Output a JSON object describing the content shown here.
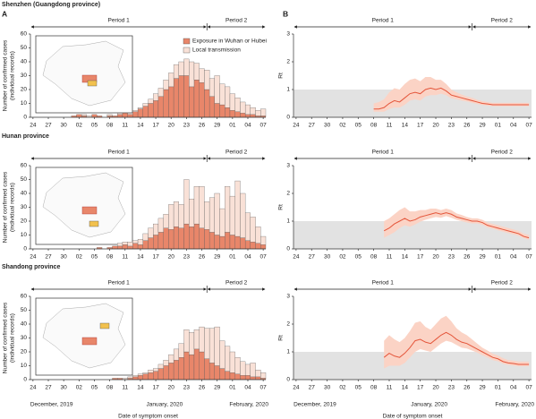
{
  "chart_data": [
    {
      "type": "stacked_bar",
      "title": "Shenzhen (Guangdong province)",
      "panel": "A",
      "categories": [
        "24",
        null,
        null,
        "27",
        null,
        null,
        "30",
        null,
        null,
        "02",
        null,
        null,
        "05",
        null,
        null,
        "08",
        null,
        null,
        "11",
        null,
        null,
        "14",
        null,
        null,
        "17",
        null,
        null,
        "20",
        null,
        null,
        "23",
        null,
        null,
        "26",
        null,
        null,
        "29",
        null,
        null,
        "01",
        null,
        null,
        "04",
        null,
        null,
        "07"
      ],
      "series": [
        {
          "name": "Exposure in Wuhan or Hubei",
          "color": "#e8866a",
          "values": [
            0,
            0,
            0,
            0,
            0,
            0,
            0,
            0,
            1,
            2,
            1,
            0,
            2,
            1,
            0,
            1,
            1,
            2,
            3,
            2,
            4,
            6,
            8,
            10,
            12,
            15,
            20,
            22,
            28,
            30,
            30,
            22,
            27,
            25,
            20,
            15,
            10,
            9,
            7,
            5,
            4,
            3,
            2,
            2,
            1,
            1
          ]
        },
        {
          "name": "Local transmission",
          "color": "#f9e1d7",
          "values": [
            0,
            0,
            0,
            0,
            0,
            0,
            0,
            0,
            0,
            0,
            1,
            1,
            0,
            0,
            0,
            1,
            0,
            1,
            0,
            1,
            1,
            1,
            2,
            3,
            5,
            6,
            7,
            10,
            10,
            10,
            12,
            18,
            12,
            10,
            14,
            13,
            20,
            15,
            15,
            12,
            10,
            8,
            7,
            5,
            4,
            5
          ]
        }
      ],
      "ylabel": [
        "Number of confirmed cases",
        "(individual records)"
      ],
      "ylim": [
        0,
        60
      ],
      "yticks": [
        0,
        10,
        20,
        30,
        40,
        50,
        60
      ],
      "periods": [
        "Period 1",
        "Period 2"
      ],
      "period_split": 34.5
    },
    {
      "type": "line",
      "panel": "B",
      "categories": [
        "24",
        null,
        null,
        "27",
        null,
        null,
        "30",
        null,
        null,
        "02",
        null,
        null,
        "05",
        null,
        null,
        "08",
        null,
        null,
        "11",
        null,
        null,
        "14",
        null,
        null,
        "17",
        null,
        null,
        "20",
        null,
        null,
        "23",
        null,
        null,
        "26",
        null,
        null,
        "29",
        null,
        null,
        "01",
        null,
        null,
        "04",
        null,
        null,
        "07"
      ],
      "values": [
        null,
        null,
        null,
        null,
        null,
        null,
        null,
        null,
        null,
        null,
        null,
        null,
        null,
        null,
        null,
        0.3,
        0.3,
        0.35,
        0.5,
        0.6,
        0.55,
        0.7,
        0.85,
        0.9,
        0.85,
        1.0,
        1.05,
        1.0,
        1.05,
        0.95,
        0.8,
        0.75,
        0.7,
        0.65,
        0.6,
        0.55,
        0.5,
        0.48,
        0.45,
        0.45,
        0.45,
        0.45,
        0.45,
        0.45,
        0.45,
        0.45
      ],
      "lower": [
        null,
        null,
        null,
        null,
        null,
        null,
        null,
        null,
        null,
        null,
        null,
        null,
        null,
        null,
        null,
        0.2,
        0.2,
        0.2,
        0.3,
        0.35,
        0.35,
        0.45,
        0.6,
        0.65,
        0.6,
        0.75,
        0.8,
        0.8,
        0.85,
        0.8,
        0.68,
        0.65,
        0.6,
        0.57,
        0.52,
        0.48,
        0.44,
        0.42,
        0.4,
        0.4,
        0.4,
        0.4,
        0.4,
        0.4,
        0.4,
        0.4
      ],
      "upper": [
        null,
        null,
        null,
        null,
        null,
        null,
        null,
        null,
        null,
        null,
        null,
        null,
        null,
        null,
        null,
        0.5,
        0.55,
        0.65,
        0.9,
        1.05,
        1.0,
        1.2,
        1.35,
        1.4,
        1.3,
        1.45,
        1.45,
        1.35,
        1.35,
        1.2,
        1.0,
        0.9,
        0.82,
        0.75,
        0.7,
        0.63,
        0.58,
        0.55,
        0.52,
        0.52,
        0.52,
        0.52,
        0.52,
        0.52,
        0.52,
        0.52
      ],
      "color": "#e4553a",
      "band_color": "#fbd3c5",
      "reference_band": [
        0,
        1
      ],
      "reference_color": "#e2e2e2",
      "ylabel": "Rt",
      "ylim": [
        0,
        3
      ],
      "yticks": [
        0,
        1,
        2,
        3
      ],
      "periods": [
        "Period 1",
        "Period 2"
      ],
      "period_split": 34.5
    },
    {
      "type": "stacked_bar",
      "title": "Hunan province",
      "categories": [
        "24",
        null,
        null,
        "27",
        null,
        null,
        "30",
        null,
        null,
        "02",
        null,
        null,
        "05",
        null,
        null,
        "08",
        null,
        null,
        "11",
        null,
        null,
        "14",
        null,
        null,
        "17",
        null,
        null,
        "20",
        null,
        null,
        "23",
        null,
        null,
        "26",
        null,
        null,
        "29",
        null,
        null,
        "01",
        null,
        null,
        "04",
        null,
        null,
        "07"
      ],
      "series": [
        {
          "color": "#e8866a",
          "values": [
            0,
            0,
            0,
            0,
            0,
            0,
            0,
            0,
            0,
            0,
            0,
            0,
            0,
            1,
            0,
            1,
            2,
            2,
            3,
            2,
            4,
            3,
            6,
            8,
            10,
            12,
            15,
            14,
            16,
            15,
            18,
            16,
            18,
            15,
            14,
            12,
            10,
            9,
            12,
            10,
            9,
            8,
            6,
            5,
            4,
            3
          ]
        },
        {
          "color": "#f9e1d7",
          "values": [
            0,
            0,
            0,
            0,
            0,
            0,
            0,
            0,
            0,
            0,
            0,
            0,
            0,
            0,
            0,
            0,
            0,
            2,
            2,
            3,
            2,
            4,
            5,
            7,
            8,
            10,
            10,
            18,
            18,
            17,
            32,
            20,
            27,
            30,
            20,
            25,
            30,
            20,
            33,
            28,
            40,
            32,
            20,
            18,
            12,
            6
          ]
        }
      ],
      "ylabel": [
        "Number of confirmed cases",
        "(individual records)"
      ],
      "ylim": [
        0,
        60
      ],
      "yticks": [
        0,
        10,
        20,
        30,
        40,
        50,
        60
      ],
      "periods": [
        "Period 1",
        "Period 2"
      ],
      "period_split": 34.5
    },
    {
      "type": "line",
      "categories": [
        "24",
        null,
        null,
        "27",
        null,
        null,
        "30",
        null,
        null,
        "02",
        null,
        null,
        "05",
        null,
        null,
        "08",
        null,
        null,
        "11",
        null,
        null,
        "14",
        null,
        null,
        "17",
        null,
        null,
        "20",
        null,
        null,
        "23",
        null,
        null,
        "26",
        null,
        null,
        "29",
        null,
        null,
        "01",
        null,
        null,
        "04",
        null,
        null,
        "07"
      ],
      "values": [
        null,
        null,
        null,
        null,
        null,
        null,
        null,
        null,
        null,
        null,
        null,
        null,
        null,
        null,
        null,
        null,
        null,
        0.65,
        0.75,
        0.9,
        1.0,
        1.1,
        1.0,
        1.05,
        1.15,
        1.2,
        1.25,
        1.3,
        1.25,
        1.3,
        1.25,
        1.15,
        1.1,
        1.05,
        1.0,
        1.0,
        0.95,
        0.85,
        0.8,
        0.75,
        0.7,
        0.65,
        0.6,
        0.55,
        0.45,
        0.4
      ],
      "lower": [
        null,
        null,
        null,
        null,
        null,
        null,
        null,
        null,
        null,
        null,
        null,
        null,
        null,
        null,
        null,
        null,
        null,
        0.4,
        0.5,
        0.6,
        0.75,
        0.85,
        0.8,
        0.88,
        0.98,
        1.05,
        1.1,
        1.15,
        1.12,
        1.18,
        1.12,
        1.05,
        1.0,
        0.95,
        0.92,
        0.92,
        0.87,
        0.77,
        0.72,
        0.67,
        0.62,
        0.57,
        0.52,
        0.47,
        0.38,
        0.33
      ],
      "upper": [
        null,
        null,
        null,
        null,
        null,
        null,
        null,
        null,
        null,
        null,
        null,
        null,
        null,
        null,
        null,
        null,
        null,
        1.0,
        1.1,
        1.25,
        1.4,
        1.5,
        1.35,
        1.35,
        1.4,
        1.4,
        1.45,
        1.45,
        1.4,
        1.45,
        1.4,
        1.28,
        1.22,
        1.15,
        1.1,
        1.1,
        1.05,
        0.95,
        0.9,
        0.85,
        0.8,
        0.75,
        0.7,
        0.65,
        0.55,
        0.5
      ],
      "color": "#e4553a",
      "band_color": "#fbd3c5",
      "reference_band": [
        0,
        1
      ],
      "reference_color": "#e2e2e2",
      "ylabel": "Rt",
      "ylim": [
        0,
        3
      ],
      "yticks": [
        0,
        1,
        2,
        3
      ],
      "periods": [
        "Period 1",
        "Period 2"
      ],
      "period_split": 34.5
    },
    {
      "type": "stacked_bar",
      "title": "Shandong province",
      "categories": [
        "24",
        null,
        null,
        "27",
        null,
        null,
        "30",
        null,
        null,
        "02",
        null,
        null,
        "05",
        null,
        null,
        "08",
        null,
        null,
        "11",
        null,
        null,
        "14",
        null,
        null,
        "17",
        null,
        null,
        "20",
        null,
        null,
        "23",
        null,
        null,
        "26",
        null,
        null,
        "29",
        null,
        null,
        "01",
        null,
        null,
        "04",
        null,
        null,
        "07"
      ],
      "series": [
        {
          "color": "#e8866a",
          "values": [
            0,
            0,
            0,
            0,
            0,
            0,
            0,
            0,
            0,
            0,
            0,
            0,
            0,
            0,
            0,
            0,
            1,
            1,
            0,
            1,
            2,
            3,
            4,
            5,
            6,
            8,
            10,
            12,
            14,
            16,
            20,
            18,
            22,
            20,
            15,
            12,
            10,
            8,
            6,
            5,
            4,
            3,
            3,
            2,
            2,
            1
          ]
        },
        {
          "color": "#f9e1d7",
          "values": [
            0,
            0,
            0,
            0,
            0,
            0,
            0,
            0,
            0,
            0,
            0,
            0,
            0,
            0,
            0,
            0,
            0,
            0,
            1,
            1,
            1,
            1,
            1,
            2,
            2,
            3,
            4,
            6,
            8,
            10,
            16,
            16,
            14,
            18,
            22,
            25,
            28,
            20,
            18,
            15,
            12,
            10,
            8,
            10,
            5,
            4
          ]
        }
      ],
      "ylabel": [
        "Number of confirmed cases",
        "(individual records)"
      ],
      "ylim": [
        0,
        60
      ],
      "yticks": [
        0,
        10,
        20,
        30,
        40,
        50,
        60
      ],
      "periods": [
        "Period 1",
        "Period 2"
      ],
      "period_split": 34.5,
      "months": [
        "December, 2019",
        "January, 2020",
        "February, 2020"
      ],
      "xlabel": "Date of symptom onset"
    },
    {
      "type": "line",
      "categories": [
        "24",
        null,
        null,
        "27",
        null,
        null,
        "30",
        null,
        null,
        "02",
        null,
        null,
        "05",
        null,
        null,
        "08",
        null,
        null,
        "11",
        null,
        null,
        "14",
        null,
        null,
        "17",
        null,
        null,
        "20",
        null,
        null,
        "23",
        null,
        null,
        "26",
        null,
        null,
        "29",
        null,
        null,
        "01",
        null,
        null,
        "04",
        null,
        null,
        "07"
      ],
      "values": [
        null,
        null,
        null,
        null,
        null,
        null,
        null,
        null,
        null,
        null,
        null,
        null,
        null,
        null,
        null,
        null,
        null,
        0.8,
        0.95,
        0.85,
        0.8,
        0.95,
        1.15,
        1.4,
        1.45,
        1.35,
        1.3,
        1.45,
        1.6,
        1.7,
        1.6,
        1.45,
        1.35,
        1.3,
        1.2,
        1.1,
        1.0,
        0.9,
        0.8,
        0.75,
        0.65,
        0.6,
        0.58,
        0.55,
        0.55,
        0.55
      ],
      "lower": [
        null,
        null,
        null,
        null,
        null,
        null,
        null,
        null,
        null,
        null,
        null,
        null,
        null,
        null,
        null,
        null,
        null,
        0.4,
        0.5,
        0.5,
        0.5,
        0.6,
        0.8,
        1.0,
        1.1,
        1.05,
        1.0,
        1.15,
        1.3,
        1.4,
        1.35,
        1.25,
        1.15,
        1.12,
        1.05,
        0.97,
        0.88,
        0.8,
        0.7,
        0.66,
        0.57,
        0.53,
        0.5,
        0.48,
        0.48,
        0.48
      ],
      "upper": [
        null,
        null,
        null,
        null,
        null,
        null,
        null,
        null,
        null,
        null,
        null,
        null,
        null,
        null,
        null,
        null,
        null,
        1.4,
        1.6,
        1.45,
        1.35,
        1.5,
        1.75,
        2.05,
        2.1,
        1.9,
        1.8,
        2.0,
        2.2,
        2.3,
        2.1,
        1.85,
        1.7,
        1.6,
        1.45,
        1.3,
        1.15,
        1.05,
        0.93,
        0.87,
        0.77,
        0.7,
        0.68,
        0.65,
        0.65,
        0.65
      ],
      "color": "#e4553a",
      "band_color": "#fbd3c5",
      "reference_band": [
        0,
        1
      ],
      "reference_color": "#e2e2e2",
      "ylabel": "Rt",
      "ylim": [
        0,
        3
      ],
      "yticks": [
        0,
        1,
        2,
        3
      ],
      "periods": [
        "Period 1",
        "Period 2"
      ],
      "period_split": 34.5,
      "months": [
        "December, 2019",
        "January, 2020",
        "February, 2020"
      ],
      "xlabel": "Date of symptom onset"
    }
  ]
}
